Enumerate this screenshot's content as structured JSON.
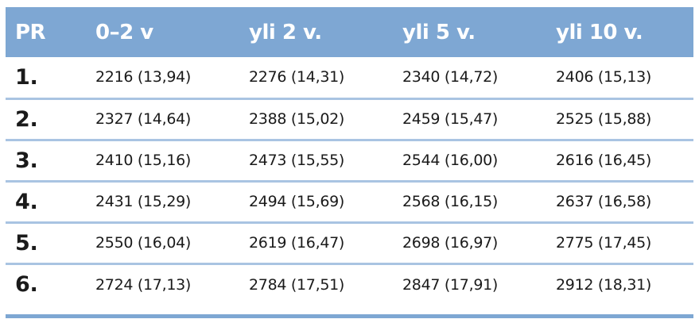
{
  "header": [
    "PR",
    "0–2 v",
    "yli 2 v.",
    "yli 5 v.",
    "yli 10 v."
  ],
  "rows": [
    {
      "pr": "1.",
      "cells": [
        "2216 (13,94)",
        "2276 (14,31)",
        "2340 (14,72)",
        "2406 (15,13)"
      ]
    },
    {
      "pr": "2.",
      "cells": [
        "2327 (14,64)",
        "2388 (15,02)",
        "2459 (15,47)",
        "2525 (15,88)"
      ]
    },
    {
      "pr": "3.",
      "cells": [
        "2410 (15,16)",
        "2473 (15,55)",
        "2544 (16,00)",
        "2616 (16,45)"
      ]
    },
    {
      "pr": "4.",
      "cells": [
        "2431 (15,29)",
        "2494 (15,69)",
        "2568 (16,15)",
        "2637 (16,58)"
      ]
    },
    {
      "pr": "5.",
      "cells": [
        "2550 (16,04)",
        "2619 (16,47)",
        "2698 (16,97)",
        "2775 (17,45)"
      ]
    },
    {
      "pr": "6.",
      "cells": [
        "2724 (17,13)",
        "2784 (17,51)",
        "2847 (17,91)",
        "2912 (18,31)"
      ]
    }
  ],
  "colors": {
    "header_bg": "#7ea7d3",
    "row_rule": "#a9c4e2",
    "header_text": "#ffffff"
  }
}
